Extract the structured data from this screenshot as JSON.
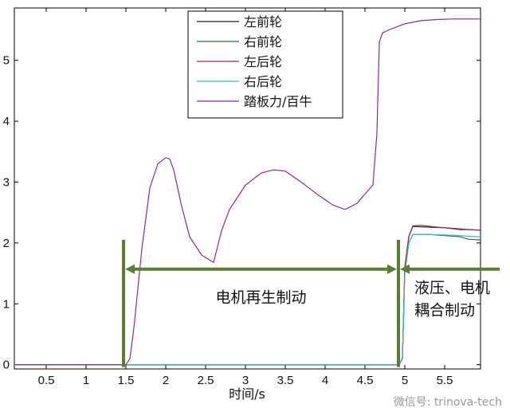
{
  "chart_data": {
    "type": "line",
    "xlabel": "时间/s",
    "ylabel": "",
    "xlim": [
      0.1,
      5.95
    ],
    "ylim": [
      -0.07,
      5.86
    ],
    "xticks": [
      "0.5",
      "1",
      "1.5",
      "2",
      "2.5",
      "3",
      "3.5",
      "4",
      "4.5",
      "5",
      "5.5"
    ],
    "yticks": [
      "0",
      "1",
      "2",
      "3",
      "4",
      "5"
    ],
    "grid": false,
    "legend_position": "top-center",
    "series": [
      {
        "name": "左前轮",
        "color": "#222222",
        "x": [
          0.1,
          4.93,
          4.97,
          5.0,
          5.05,
          5.1,
          5.3,
          5.5,
          5.7,
          5.8,
          5.95
        ],
        "y": [
          0,
          0,
          0.1,
          1.6,
          2.1,
          2.27,
          2.26,
          2.25,
          2.22,
          2.22,
          2.21
        ]
      },
      {
        "name": "右前轮",
        "color": "#2e6b4a",
        "x": [
          0.1,
          4.93,
          4.97,
          5.0,
          5.05,
          5.1,
          5.3,
          5.5,
          5.7,
          5.8,
          5.95
        ],
        "y": [
          0,
          0,
          0.1,
          1.5,
          2.0,
          2.14,
          2.14,
          2.12,
          2.1,
          2.06,
          2.05
        ]
      },
      {
        "name": "左后轮",
        "color": "#9a2a4a",
        "x": [
          0.1,
          4.93,
          4.97,
          5.0,
          5.05,
          5.1,
          5.2,
          5.4,
          5.6,
          5.8,
          5.95
        ],
        "y": [
          0,
          0,
          0.1,
          1.6,
          2.1,
          2.28,
          2.29,
          2.26,
          2.24,
          2.22,
          2.21
        ]
      },
      {
        "name": "右后轮",
        "color": "#35b8c8",
        "x": [
          0.1,
          4.93,
          4.97,
          5.0,
          5.05,
          5.1,
          5.3,
          5.5,
          5.7,
          5.8,
          5.95
        ],
        "y": [
          0,
          0,
          0.1,
          1.5,
          2.0,
          2.14,
          2.14,
          2.13,
          2.12,
          2.11,
          2.1
        ]
      },
      {
        "name": "踏板力/百牛",
        "color": "#8a2a9a",
        "x": [
          0.1,
          1.5,
          1.55,
          1.6,
          1.7,
          1.8,
          1.9,
          2.0,
          2.05,
          2.1,
          2.2,
          2.3,
          2.45,
          2.6,
          2.7,
          2.8,
          3.0,
          3.2,
          3.35,
          3.5,
          3.7,
          3.9,
          4.1,
          4.25,
          4.4,
          4.55,
          4.6,
          4.65,
          4.68,
          4.72,
          4.8,
          4.9,
          5.0,
          5.2,
          5.4,
          5.6,
          5.8,
          5.95
        ],
        "y": [
          0,
          0,
          0.1,
          0.6,
          1.9,
          2.9,
          3.3,
          3.4,
          3.38,
          3.2,
          2.6,
          2.1,
          1.8,
          1.68,
          2.2,
          2.55,
          2.95,
          3.15,
          3.2,
          3.18,
          3.0,
          2.8,
          2.62,
          2.55,
          2.65,
          2.88,
          2.95,
          3.8,
          5.3,
          5.45,
          5.5,
          5.55,
          5.6,
          5.65,
          5.67,
          5.68,
          5.68,
          5.68
        ]
      }
    ],
    "annotations": [
      {
        "text": "电机再生制动",
        "x_start": 1.47,
        "x_end": 4.92,
        "y": 1.57
      },
      {
        "text": "液压、电机",
        "line2": "耦合制动",
        "x_start": 4.92,
        "x_end": 5.95,
        "y": 1.57
      }
    ],
    "annotation_color": "#5a7d35"
  },
  "watermark": "微信号: trinova-tech"
}
